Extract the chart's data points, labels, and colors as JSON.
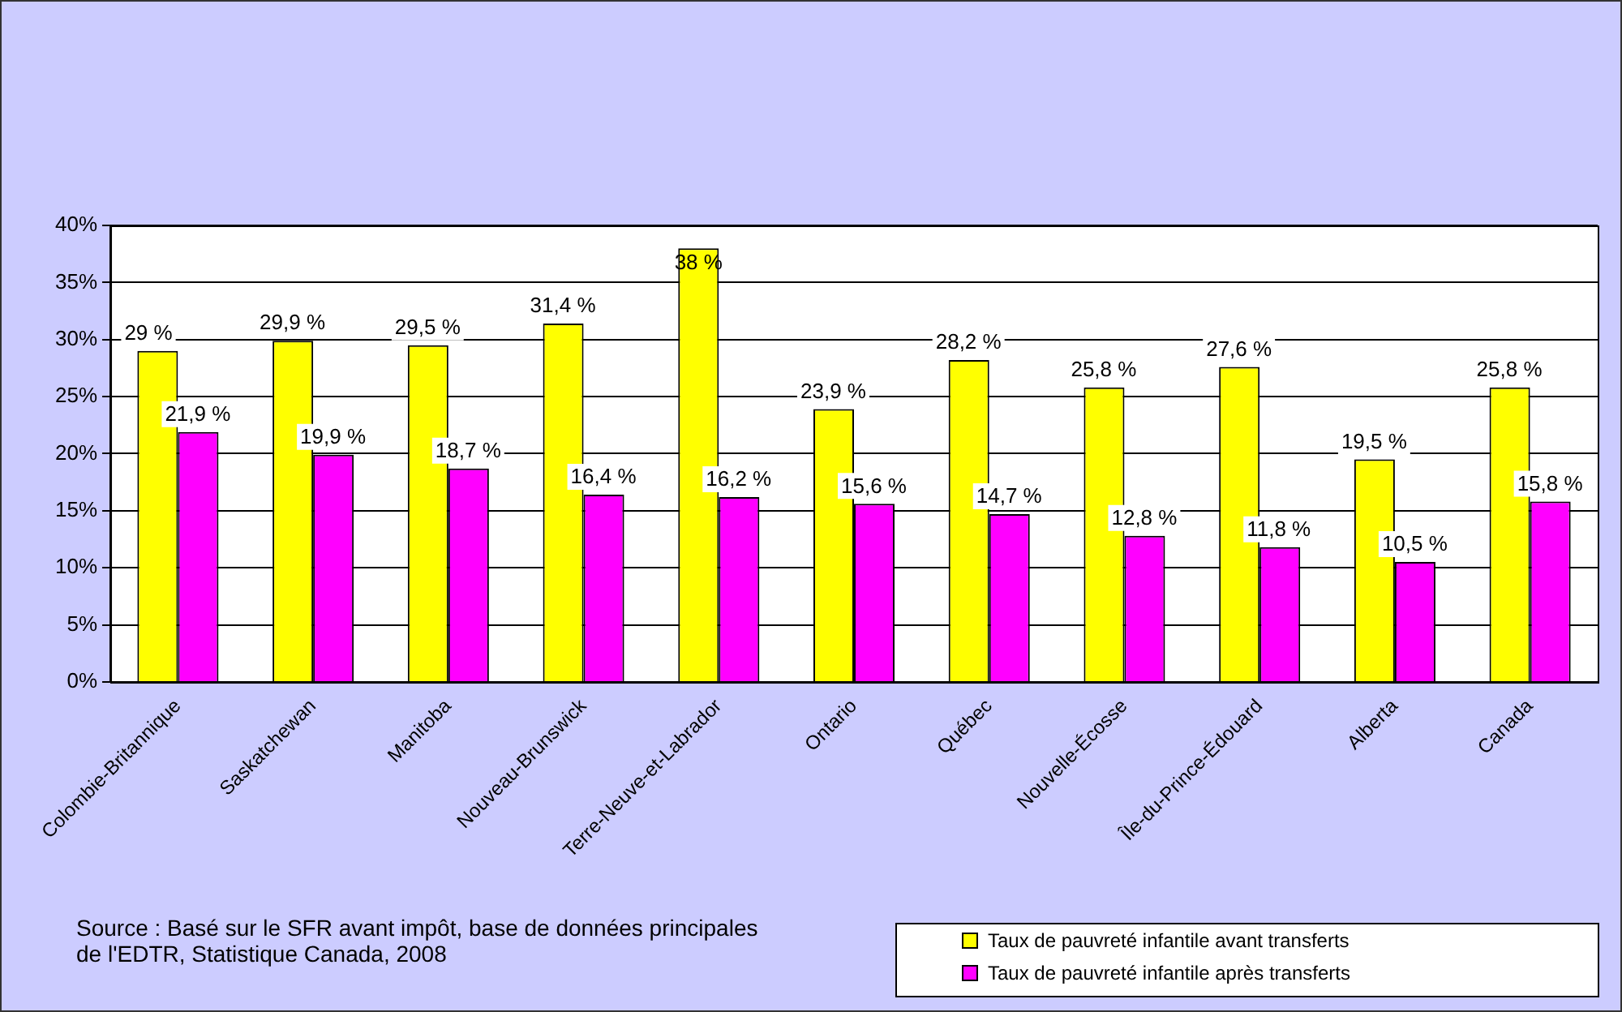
{
  "chart_data": {
    "type": "bar",
    "categories": [
      "Colombie-Britannique",
      "Saskatchewan",
      "Manitoba",
      "Nouveau-Brunswick",
      "Terre-Neuve-et-Labrador",
      "Ontario",
      "Québec",
      "Nouvelle-Écosse",
      "Île-du-Prince-Édouard",
      "Alberta",
      "Canada"
    ],
    "series": [
      {
        "name": "Taux de pauvreté infantile avant transferts",
        "color": "#ffff00",
        "values": [
          29,
          29.9,
          29.5,
          31.4,
          38,
          23.9,
          28.2,
          25.8,
          27.6,
          19.5,
          25.8
        ],
        "value_labels": [
          "29 %",
          "29,9 %",
          "29,5 %",
          "31,4 %",
          "38 %",
          "23,9 %",
          "28,2 %",
          "25,8 %",
          "27,6 %",
          "19,5 %",
          "25,8 %"
        ]
      },
      {
        "name": "Taux de pauvreté infantile après transferts",
        "color": "#ff00ff",
        "values": [
          21.9,
          19.9,
          18.7,
          16.4,
          16.2,
          15.6,
          14.7,
          12.8,
          11.8,
          10.5,
          15.8
        ],
        "value_labels": [
          "21,9 %",
          "19,9 %",
          "18,7 %",
          "16,4 %",
          "16,2 %",
          "15,6 %",
          "14,7 %",
          "12,8 %",
          "11,8 %",
          "10,5 %",
          "15,8 %"
        ]
      }
    ],
    "ylim": [
      0,
      40
    ],
    "yticks": [
      {
        "value": 0,
        "label": "0%"
      },
      {
        "value": 5,
        "label": "5%"
      },
      {
        "value": 10,
        "label": "10%"
      },
      {
        "value": 15,
        "label": "15%"
      },
      {
        "value": 20,
        "label": "20%"
      },
      {
        "value": 25,
        "label": "25%"
      },
      {
        "value": 30,
        "label": "30%"
      },
      {
        "value": 35,
        "label": "35%"
      },
      {
        "value": 40,
        "label": "40%"
      }
    ],
    "grid": "y",
    "legend": "bottom right",
    "annotations": [
      "Source : Basé sur le SFR avant impôt, base de données principales de l'EDTR, Statistique Canada, 2008"
    ]
  }
}
